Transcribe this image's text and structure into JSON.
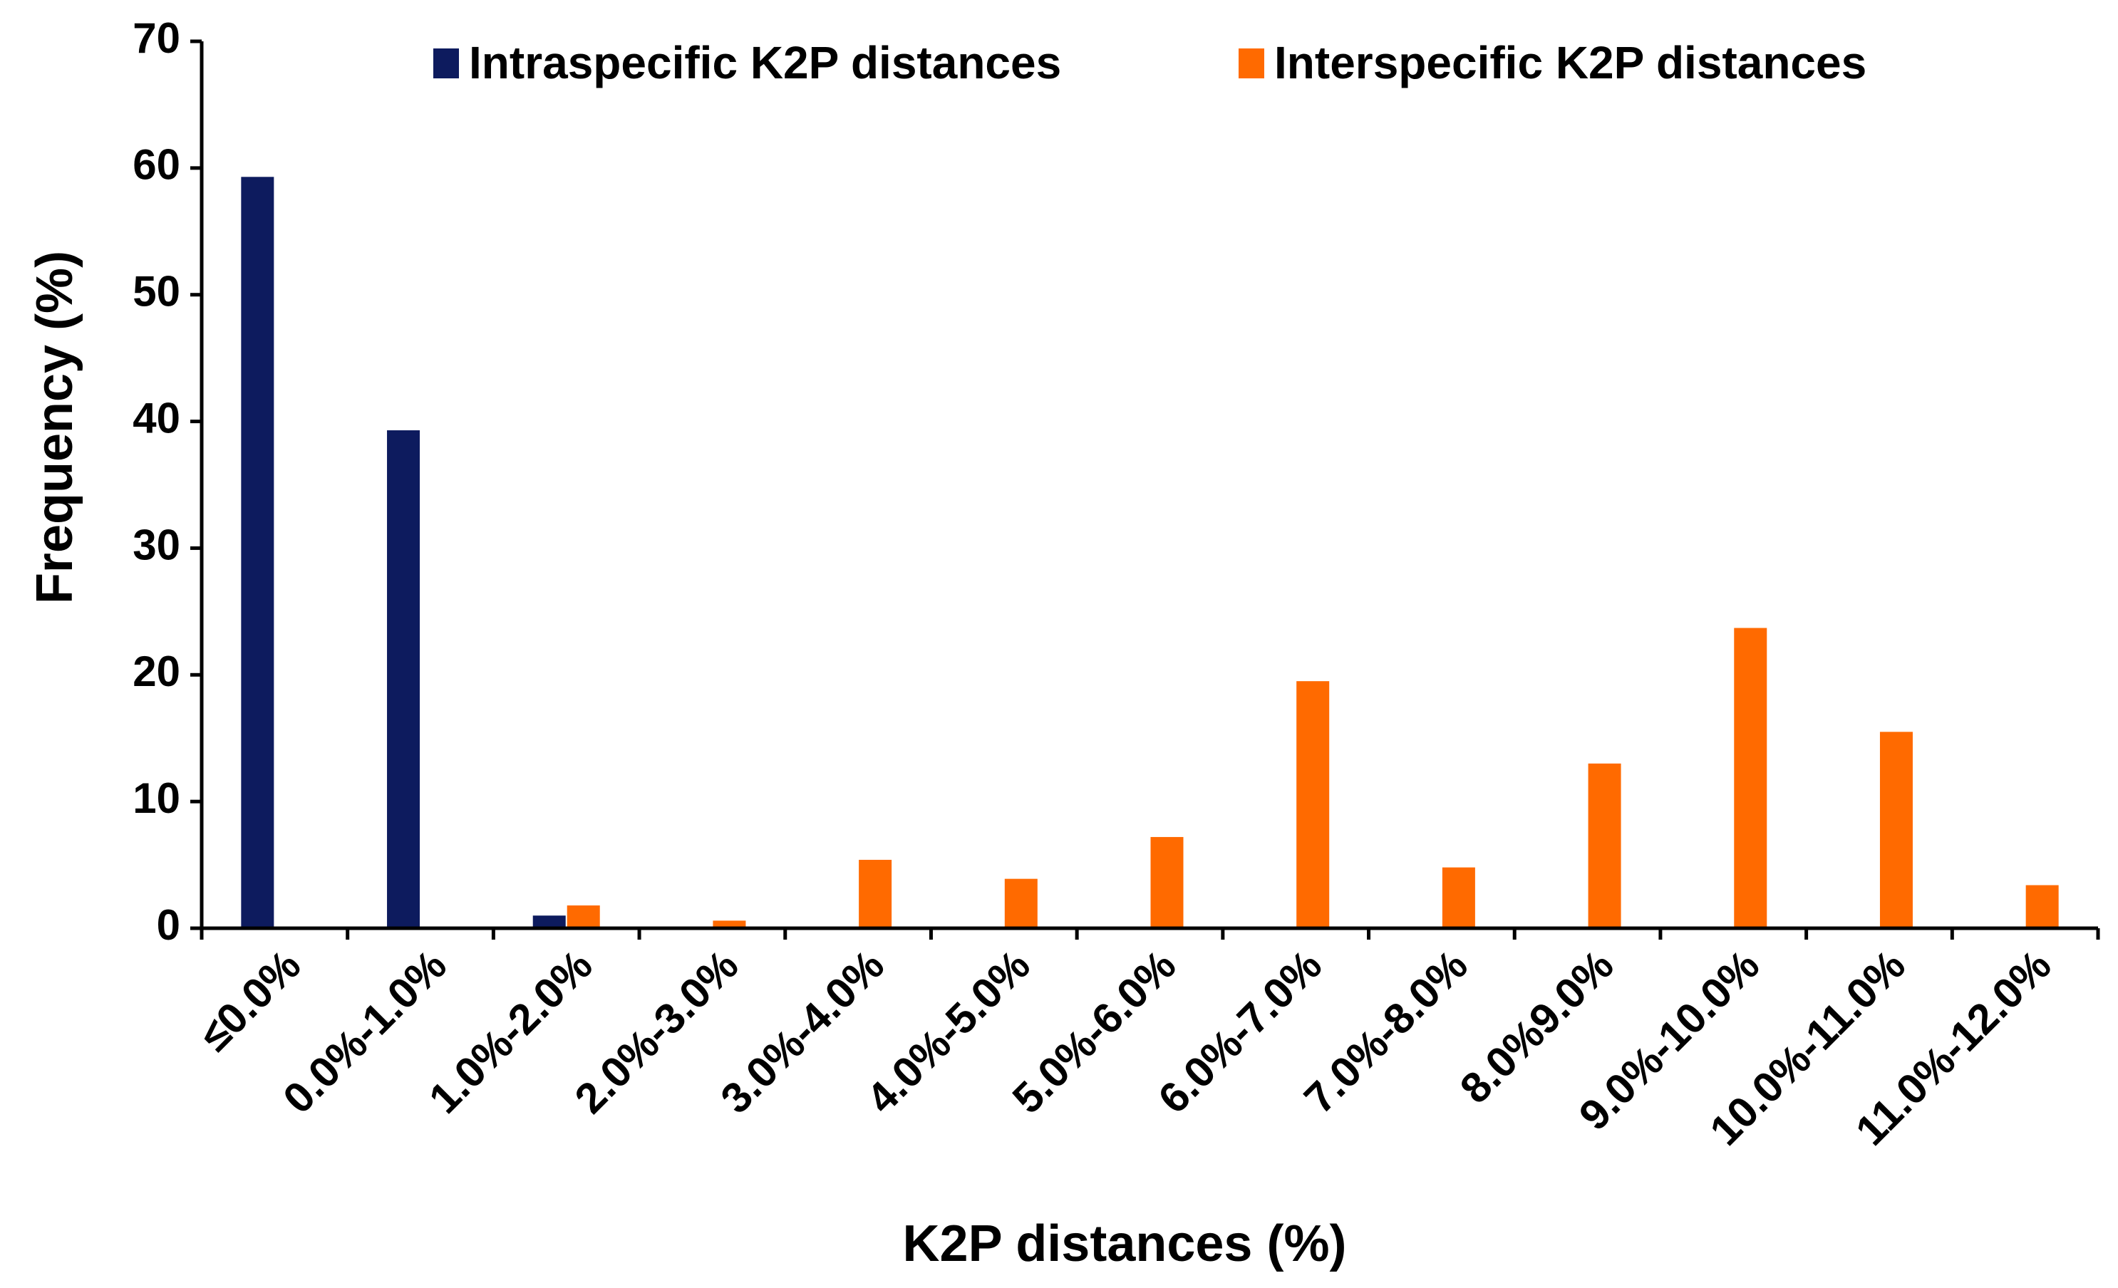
{
  "chart_data": {
    "type": "bar",
    "title": "",
    "xlabel": "K2P distances (%)",
    "ylabel": "Frequency (%)",
    "ylim": [
      0,
      70
    ],
    "yticks": [
      "0",
      "10",
      "20",
      "30",
      "40",
      "50",
      "60",
      "70"
    ],
    "yticks_values": [
      0,
      10,
      20,
      30,
      40,
      50,
      60,
      70
    ],
    "categories": [
      "≤0.0%",
      "0.0%-1.0%",
      "1.0%-2.0%",
      "2.0%-3.0%",
      "3.0%-4.0%",
      "4.0%-5.0%",
      "5.0%-6.0%",
      "6.0%-7.0%",
      "7.0%-8.0%",
      "8.0%9.0%",
      "9.0%-10.0%",
      "10.0%-11.0%",
      "11.0%-12.0%"
    ],
    "series": [
      {
        "name": "Intraspecific K2P distances",
        "color": "#0d1b5e",
        "values": [
          59.3,
          39.3,
          1.0,
          0.1,
          0,
          0,
          0,
          0,
          0,
          0,
          0,
          0,
          0
        ]
      },
      {
        "name": "Interspecific K2P distances",
        "color": "#ff6a00",
        "values": [
          0,
          0,
          1.8,
          0.6,
          5.4,
          3.9,
          7.2,
          19.5,
          4.8,
          13.0,
          23.7,
          15.5,
          3.4
        ]
      }
    ],
    "legend_position": "top"
  }
}
